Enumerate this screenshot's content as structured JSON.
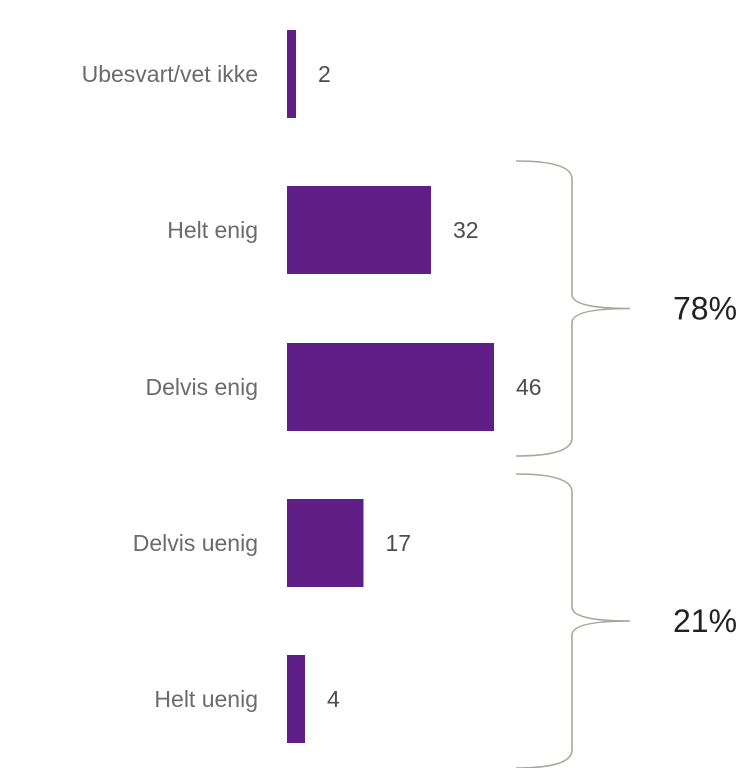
{
  "chart_data": {
    "type": "bar",
    "orientation": "horizontal",
    "categories": [
      "Ubesvart/vet ikke",
      "Helt enig",
      "Delvis enig",
      "Delvis uenig",
      "Helt uenig"
    ],
    "values": [
      2,
      32,
      46,
      17,
      4
    ],
    "bar_color": "#5f1f87",
    "groups": [
      {
        "label": "78%",
        "categories": [
          "Helt enig",
          "Delvis enig"
        ]
      },
      {
        "label": "21%",
        "categories": [
          "Delvis uenig",
          "Helt uenig"
        ]
      }
    ],
    "title": "",
    "xlabel": "",
    "ylabel": "",
    "grid": false,
    "legend": "none"
  }
}
